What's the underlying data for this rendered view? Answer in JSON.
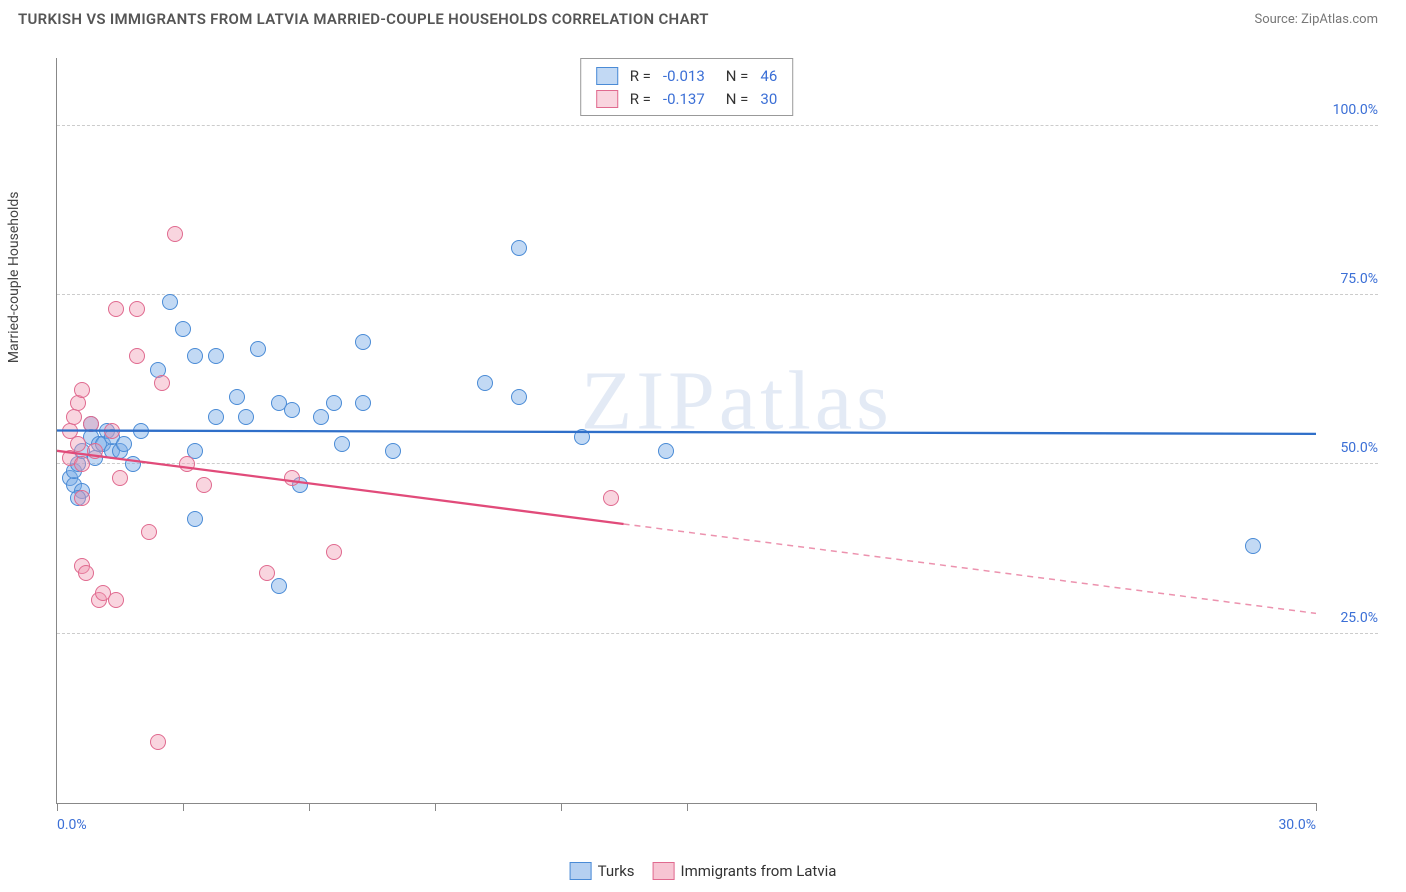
{
  "header": {
    "title": "TURKISH VS IMMIGRANTS FROM LATVIA MARRIED-COUPLE HOUSEHOLDS CORRELATION CHART",
    "source": "Source: ZipAtlas.com"
  },
  "ylabel": "Married-couple Households",
  "watermark": "ZIPatlas",
  "xlim": [
    0,
    30
  ],
  "ylim": [
    0,
    110
  ],
  "ytick_values": [
    25,
    50,
    75,
    100
  ],
  "ytick_labels": [
    "25.0%",
    "50.0%",
    "75.0%",
    "100.0%"
  ],
  "xtick_values": [
    0,
    3,
    6,
    9,
    12,
    15,
    30
  ],
  "xtick_labels_left": "0.0%",
  "xtick_labels_right": "30.0%",
  "point_radius": 8,
  "series": [
    {
      "name": "Turks",
      "fill": "rgba(120,170,230,0.45)",
      "stroke": "#4a8bd6",
      "line_color": "#2f6fc9",
      "trend_y_at_x0": 55,
      "trend_y_at_xmax": 54.5,
      "solid_until_x": 30,
      "R": "-0.013",
      "N": "46",
      "points": [
        {
          "x": 0.3,
          "y": 48
        },
        {
          "x": 0.4,
          "y": 47
        },
        {
          "x": 0.4,
          "y": 49
        },
        {
          "x": 0.5,
          "y": 50
        },
        {
          "x": 0.6,
          "y": 46
        },
        {
          "x": 0.6,
          "y": 52
        },
        {
          "x": 0.8,
          "y": 54
        },
        {
          "x": 0.8,
          "y": 56
        },
        {
          "x": 0.9,
          "y": 51
        },
        {
          "x": 1.0,
          "y": 53
        },
        {
          "x": 1.1,
          "y": 53
        },
        {
          "x": 1.2,
          "y": 55
        },
        {
          "x": 1.3,
          "y": 52
        },
        {
          "x": 1.3,
          "y": 54
        },
        {
          "x": 1.5,
          "y": 52
        },
        {
          "x": 1.6,
          "y": 53
        },
        {
          "x": 1.8,
          "y": 50
        },
        {
          "x": 2.0,
          "y": 55
        },
        {
          "x": 2.4,
          "y": 64
        },
        {
          "x": 2.7,
          "y": 74
        },
        {
          "x": 3.0,
          "y": 70
        },
        {
          "x": 3.3,
          "y": 66
        },
        {
          "x": 3.3,
          "y": 52
        },
        {
          "x": 3.3,
          "y": 42
        },
        {
          "x": 3.8,
          "y": 57
        },
        {
          "x": 3.8,
          "y": 66
        },
        {
          "x": 4.3,
          "y": 60
        },
        {
          "x": 4.5,
          "y": 57
        },
        {
          "x": 4.8,
          "y": 67
        },
        {
          "x": 5.3,
          "y": 59
        },
        {
          "x": 5.3,
          "y": 32
        },
        {
          "x": 5.6,
          "y": 58
        },
        {
          "x": 5.8,
          "y": 47
        },
        {
          "x": 6.3,
          "y": 57
        },
        {
          "x": 6.6,
          "y": 59
        },
        {
          "x": 6.8,
          "y": 53
        },
        {
          "x": 7.3,
          "y": 68
        },
        {
          "x": 7.3,
          "y": 59
        },
        {
          "x": 8.0,
          "y": 52
        },
        {
          "x": 10.2,
          "y": 62
        },
        {
          "x": 11.0,
          "y": 60
        },
        {
          "x": 11.0,
          "y": 82
        },
        {
          "x": 12.5,
          "y": 54
        },
        {
          "x": 14.5,
          "y": 52
        },
        {
          "x": 28.5,
          "y": 38
        },
        {
          "x": 0.5,
          "y": 45
        }
      ]
    },
    {
      "name": "Immigrants from Latvia",
      "fill": "rgba(240,150,175,0.40)",
      "stroke": "#e06a8f",
      "line_color": "#e14b7a",
      "trend_y_at_x0": 52,
      "trend_y_at_xmax": 28,
      "solid_until_x": 13.5,
      "R": "-0.137",
      "N": "30",
      "points": [
        {
          "x": 0.3,
          "y": 55
        },
        {
          "x": 0.3,
          "y": 51
        },
        {
          "x": 0.5,
          "y": 59
        },
        {
          "x": 0.5,
          "y": 53
        },
        {
          "x": 0.6,
          "y": 61
        },
        {
          "x": 0.6,
          "y": 50
        },
        {
          "x": 0.6,
          "y": 45
        },
        {
          "x": 0.6,
          "y": 35
        },
        {
          "x": 0.7,
          "y": 34
        },
        {
          "x": 0.8,
          "y": 56
        },
        {
          "x": 0.9,
          "y": 52
        },
        {
          "x": 1.0,
          "y": 30
        },
        {
          "x": 1.1,
          "y": 31
        },
        {
          "x": 1.3,
          "y": 55
        },
        {
          "x": 1.4,
          "y": 73
        },
        {
          "x": 1.4,
          "y": 30
        },
        {
          "x": 1.5,
          "y": 48
        },
        {
          "x": 1.9,
          "y": 73
        },
        {
          "x": 1.9,
          "y": 66
        },
        {
          "x": 2.2,
          "y": 40
        },
        {
          "x": 2.4,
          "y": 9
        },
        {
          "x": 2.5,
          "y": 62
        },
        {
          "x": 2.8,
          "y": 84
        },
        {
          "x": 3.1,
          "y": 50
        },
        {
          "x": 3.5,
          "y": 47
        },
        {
          "x": 5.0,
          "y": 34
        },
        {
          "x": 5.6,
          "y": 48
        },
        {
          "x": 6.6,
          "y": 37
        },
        {
          "x": 13.2,
          "y": 45
        },
        {
          "x": 0.4,
          "y": 57
        }
      ]
    }
  ],
  "legend_bottom": [
    {
      "label": "Turks",
      "fill": "rgba(120,170,230,0.55)",
      "stroke": "#4a8bd6"
    },
    {
      "label": "Immigrants from Latvia",
      "fill": "rgba(240,150,175,0.55)",
      "stroke": "#e06a8f"
    }
  ]
}
